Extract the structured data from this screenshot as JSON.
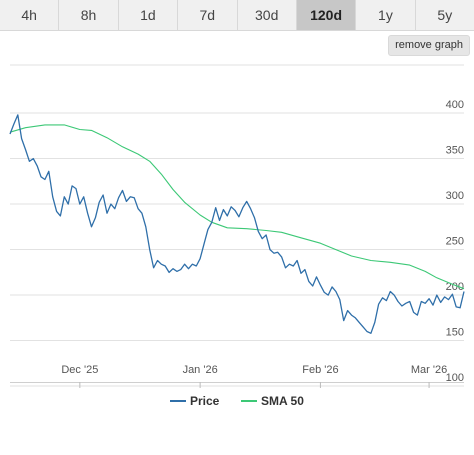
{
  "tabs": [
    {
      "label": "4h",
      "active": false
    },
    {
      "label": "8h",
      "active": false
    },
    {
      "label": "1d",
      "active": false
    },
    {
      "label": "7d",
      "active": false
    },
    {
      "label": "30d",
      "active": false
    },
    {
      "label": "120d",
      "active": true
    },
    {
      "label": "1y",
      "active": false
    },
    {
      "label": "5y",
      "active": false
    }
  ],
  "remove_graph_label": "remove graph",
  "colors": {
    "price": "#2f6fa9",
    "sma": "#3cc876",
    "active_tab": "#c7c7c7"
  },
  "chart_data": {
    "type": "line",
    "title": "",
    "xlabel": "",
    "ylabel": "",
    "ylim": [
      100,
      400
    ],
    "yticks": [
      100,
      150,
      200,
      250,
      300,
      350,
      400
    ],
    "x_tick_labels": [
      {
        "label": "Dec '25",
        "date": "2025-12-01"
      },
      {
        "label": "Jan '26",
        "date": "2026-01-01"
      },
      {
        "label": "Feb '26",
        "date": "2026-02-01"
      },
      {
        "label": "Mar '26",
        "date": "2026-03-01"
      }
    ],
    "x_range": [
      "2025-11-13",
      "2026-03-10"
    ],
    "grid": true,
    "legend_position": "bottom",
    "series": [
      {
        "name": "Price",
        "color": "#2f6fa9",
        "points": [
          [
            "2025-11-13",
            367
          ],
          [
            "2025-11-14",
            378
          ],
          [
            "2025-11-15",
            388
          ],
          [
            "2025-11-16",
            362
          ],
          [
            "2025-11-17",
            350
          ],
          [
            "2025-11-18",
            337
          ],
          [
            "2025-11-19",
            340
          ],
          [
            "2025-11-20",
            332
          ],
          [
            "2025-11-21",
            320
          ],
          [
            "2025-11-22",
            317
          ],
          [
            "2025-11-23",
            326
          ],
          [
            "2025-11-24",
            298
          ],
          [
            "2025-11-25",
            282
          ],
          [
            "2025-11-26",
            277
          ],
          [
            "2025-11-27",
            298
          ],
          [
            "2025-11-28",
            290
          ],
          [
            "2025-11-29",
            310
          ],
          [
            "2025-11-30",
            307
          ],
          [
            "2025-12-01",
            290
          ],
          [
            "2025-12-02",
            298
          ],
          [
            "2025-12-03",
            280
          ],
          [
            "2025-12-04",
            265
          ],
          [
            "2025-12-05",
            275
          ],
          [
            "2025-12-06",
            292
          ],
          [
            "2025-12-07",
            300
          ],
          [
            "2025-12-08",
            280
          ],
          [
            "2025-12-09",
            290
          ],
          [
            "2025-12-10",
            285
          ],
          [
            "2025-12-11",
            297
          ],
          [
            "2025-12-12",
            305
          ],
          [
            "2025-12-13",
            293
          ],
          [
            "2025-12-14",
            298
          ],
          [
            "2025-12-15",
            297
          ],
          [
            "2025-12-16",
            285
          ],
          [
            "2025-12-17",
            280
          ],
          [
            "2025-12-18",
            265
          ],
          [
            "2025-12-19",
            240
          ],
          [
            "2025-12-20",
            220
          ],
          [
            "2025-12-21",
            228
          ],
          [
            "2025-12-22",
            224
          ],
          [
            "2025-12-23",
            222
          ],
          [
            "2025-12-24",
            215
          ],
          [
            "2025-12-25",
            219
          ],
          [
            "2025-12-26",
            216
          ],
          [
            "2025-12-27",
            218
          ],
          [
            "2025-12-28",
            224
          ],
          [
            "2025-12-29",
            219
          ],
          [
            "2025-12-30",
            224
          ],
          [
            "2025-12-31",
            222
          ],
          [
            "2026-01-01",
            230
          ],
          [
            "2026-01-02",
            246
          ],
          [
            "2026-01-03",
            262
          ],
          [
            "2026-01-04",
            270
          ],
          [
            "2026-01-05",
            286
          ],
          [
            "2026-01-06",
            272
          ],
          [
            "2026-01-07",
            284
          ],
          [
            "2026-01-08",
            277
          ],
          [
            "2026-01-09",
            287
          ],
          [
            "2026-01-10",
            283
          ],
          [
            "2026-01-11",
            276
          ],
          [
            "2026-01-12",
            286
          ],
          [
            "2026-01-13",
            293
          ],
          [
            "2026-01-14",
            285
          ],
          [
            "2026-01-15",
            275
          ],
          [
            "2026-01-16",
            260
          ],
          [
            "2026-01-17",
            252
          ],
          [
            "2026-01-18",
            256
          ],
          [
            "2026-01-19",
            240
          ],
          [
            "2026-01-20",
            236
          ],
          [
            "2026-01-21",
            237
          ],
          [
            "2026-01-22",
            232
          ],
          [
            "2026-01-23",
            220
          ],
          [
            "2026-01-24",
            224
          ],
          [
            "2026-01-25",
            222
          ],
          [
            "2026-01-26",
            228
          ],
          [
            "2026-01-27",
            214
          ],
          [
            "2026-01-28",
            218
          ],
          [
            "2026-01-29",
            205
          ],
          [
            "2026-01-30",
            200
          ],
          [
            "2026-01-31",
            210
          ],
          [
            "2026-02-01",
            201
          ],
          [
            "2026-02-02",
            193
          ],
          [
            "2026-02-03",
            190
          ],
          [
            "2026-02-04",
            199
          ],
          [
            "2026-02-05",
            194
          ],
          [
            "2026-02-06",
            185
          ],
          [
            "2026-02-07",
            162
          ],
          [
            "2026-02-08",
            173
          ],
          [
            "2026-02-09",
            168
          ],
          [
            "2026-02-10",
            165
          ],
          [
            "2026-02-11",
            160
          ],
          [
            "2026-02-12",
            155
          ],
          [
            "2026-02-13",
            150
          ],
          [
            "2026-02-14",
            148
          ],
          [
            "2026-02-15",
            160
          ],
          [
            "2026-02-16",
            180
          ],
          [
            "2026-02-17",
            187
          ],
          [
            "2026-02-18",
            184
          ],
          [
            "2026-02-19",
            194
          ],
          [
            "2026-02-20",
            190
          ],
          [
            "2026-02-21",
            183
          ],
          [
            "2026-02-22",
            178
          ],
          [
            "2026-02-23",
            181
          ],
          [
            "2026-02-24",
            183
          ],
          [
            "2026-02-25",
            171
          ],
          [
            "2026-02-26",
            168
          ],
          [
            "2026-02-27",
            183
          ],
          [
            "2026-02-28",
            181
          ],
          [
            "2026-03-01",
            186
          ],
          [
            "2026-03-02",
            179
          ],
          [
            "2026-03-03",
            190
          ],
          [
            "2026-03-04",
            182
          ],
          [
            "2026-03-05",
            188
          ],
          [
            "2026-03-06",
            185
          ],
          [
            "2026-03-07",
            191
          ],
          [
            "2026-03-08",
            177
          ],
          [
            "2026-03-09",
            176
          ],
          [
            "2026-03-10",
            194
          ]
        ]
      },
      {
        "name": "SMA 50",
        "color": "#3cc876",
        "points": [
          [
            "2025-11-13",
            369
          ],
          [
            "2025-11-17",
            374
          ],
          [
            "2025-11-22",
            377
          ],
          [
            "2025-11-27",
            377
          ],
          [
            "2025-12-01",
            372
          ],
          [
            "2025-12-04",
            371
          ],
          [
            "2025-12-08",
            363
          ],
          [
            "2025-12-12",
            353
          ],
          [
            "2025-12-16",
            345
          ],
          [
            "2025-12-19",
            337
          ],
          [
            "2025-12-22",
            323
          ],
          [
            "2025-12-25",
            306
          ],
          [
            "2025-12-28",
            292
          ],
          [
            "2026-01-01",
            278
          ],
          [
            "2026-01-04",
            270
          ],
          [
            "2026-01-08",
            264
          ],
          [
            "2026-01-13",
            263
          ],
          [
            "2026-01-18",
            261
          ],
          [
            "2026-01-22",
            259
          ],
          [
            "2026-01-27",
            253
          ],
          [
            "2026-02-01",
            247
          ],
          [
            "2026-02-05",
            240
          ],
          [
            "2026-02-09",
            233
          ],
          [
            "2026-02-14",
            228
          ],
          [
            "2026-02-19",
            226
          ],
          [
            "2026-02-24",
            223
          ],
          [
            "2026-02-28",
            216
          ],
          [
            "2026-03-03",
            209
          ],
          [
            "2026-03-07",
            202
          ],
          [
            "2026-03-10",
            197
          ]
        ]
      }
    ]
  }
}
